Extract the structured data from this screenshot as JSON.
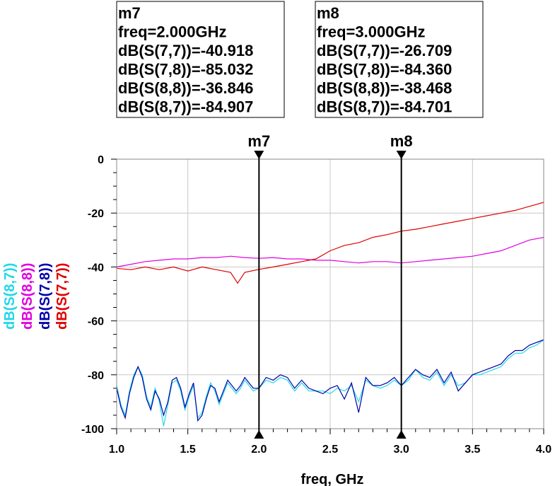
{
  "colors": {
    "s77": "#e00000",
    "s78": "#0000aa",
    "s88": "#e000e0",
    "s87": "#20d8e8",
    "marker": "#000000",
    "grid": "#c8c8c8",
    "axis": "#888888"
  },
  "markers": [
    {
      "name": "m7",
      "freq_label": "freq=2.000GHz",
      "freq": 2.0,
      "lines": [
        "dB(S(7,7))=-40.918",
        "dB(S(7,8))=-85.032",
        "dB(S(8,8))=-36.846",
        "dB(S(8,7))=-84.907"
      ]
    },
    {
      "name": "m8",
      "freq_label": "freq=3.000GHz",
      "freq": 3.0,
      "lines": [
        "dB(S(7,7))=-26.709",
        "dB(S(7,8))=-84.360",
        "dB(S(8,8))=-38.468",
        "dB(S(8,7))=-84.701"
      ]
    }
  ],
  "chart_data": {
    "type": "line",
    "xlabel": "freq, GHz",
    "ylabel": "",
    "xlim": [
      1.0,
      4.0
    ],
    "ylim": [
      -100,
      0
    ],
    "xticks": [
      "1.0",
      "1.5",
      "2.0",
      "2.5",
      "3.0",
      "3.5",
      "4.0"
    ],
    "yticks": [
      "0",
      "-20",
      "-40",
      "-60",
      "-80",
      "-100"
    ],
    "grid": true,
    "legend_placement": "left-vertical",
    "series": [
      {
        "name": "dB(S(8,7))",
        "color": "#20d8e8",
        "key": "s87",
        "x": [
          1.0,
          1.03,
          1.06,
          1.09,
          1.12,
          1.15,
          1.18,
          1.21,
          1.24,
          1.27,
          1.3,
          1.33,
          1.36,
          1.39,
          1.42,
          1.45,
          1.48,
          1.51,
          1.54,
          1.57,
          1.6,
          1.63,
          1.66,
          1.69,
          1.72,
          1.75,
          1.78,
          1.81,
          1.84,
          1.87,
          1.9,
          1.93,
          1.96,
          2.0,
          2.05,
          2.1,
          2.15,
          2.2,
          2.25,
          2.3,
          2.35,
          2.4,
          2.45,
          2.5,
          2.55,
          2.6,
          2.65,
          2.7,
          2.75,
          2.8,
          2.85,
          2.9,
          2.95,
          3.0,
          3.05,
          3.1,
          3.15,
          3.2,
          3.25,
          3.3,
          3.35,
          3.4,
          3.45,
          3.5,
          3.55,
          3.6,
          3.65,
          3.7,
          3.75,
          3.8,
          3.85,
          3.9,
          3.95,
          4.0
        ],
        "y": [
          -84,
          -91,
          -95,
          -86,
          -80,
          -77,
          -80,
          -88,
          -92,
          -85,
          -90,
          -99,
          -91,
          -83,
          -82,
          -86,
          -93,
          -88,
          -84,
          -96,
          -94,
          -88,
          -83,
          -86,
          -91,
          -87,
          -83,
          -85,
          -87,
          -85,
          -82,
          -84,
          -86,
          -85,
          -82,
          -83,
          -81,
          -82,
          -86,
          -83,
          -86,
          -86,
          -86,
          -87,
          -85,
          -86,
          -84,
          -90,
          -82,
          -84,
          -85,
          -84,
          -82,
          -84,
          -82,
          -78,
          -81,
          -82,
          -79,
          -84,
          -80,
          -84,
          -83,
          -80,
          -80,
          -79,
          -78,
          -77,
          -74,
          -72,
          -72,
          -70,
          -69,
          -67
        ]
      },
      {
        "name": "dB(S(8,8))",
        "color": "#e000e0",
        "key": "s88",
        "x": [
          1.0,
          1.1,
          1.2,
          1.3,
          1.4,
          1.5,
          1.6,
          1.7,
          1.8,
          1.9,
          2.0,
          2.1,
          2.2,
          2.3,
          2.4,
          2.5,
          2.6,
          2.7,
          2.8,
          2.9,
          3.0,
          3.1,
          3.2,
          3.3,
          3.4,
          3.5,
          3.6,
          3.7,
          3.8,
          3.9,
          4.0
        ],
        "y": [
          -40,
          -39,
          -38,
          -37.5,
          -37,
          -37,
          -36.5,
          -36.5,
          -36,
          -36.5,
          -36.8,
          -36.5,
          -37,
          -37,
          -37.5,
          -37.5,
          -38,
          -38.5,
          -38,
          -38,
          -38.5,
          -38,
          -37.5,
          -37,
          -36.5,
          -36,
          -35,
          -34,
          -32,
          -30,
          -29
        ]
      },
      {
        "name": "dB(S(7,8))",
        "color": "#0000aa",
        "key": "s78",
        "x": [
          1.0,
          1.03,
          1.06,
          1.09,
          1.12,
          1.15,
          1.18,
          1.21,
          1.24,
          1.27,
          1.3,
          1.33,
          1.36,
          1.39,
          1.42,
          1.45,
          1.48,
          1.51,
          1.54,
          1.57,
          1.6,
          1.63,
          1.66,
          1.69,
          1.72,
          1.75,
          1.78,
          1.81,
          1.84,
          1.87,
          1.9,
          1.93,
          1.96,
          2.0,
          2.05,
          2.1,
          2.15,
          2.2,
          2.25,
          2.3,
          2.35,
          2.4,
          2.45,
          2.5,
          2.55,
          2.6,
          2.65,
          2.7,
          2.75,
          2.8,
          2.85,
          2.9,
          2.95,
          3.0,
          3.05,
          3.1,
          3.15,
          3.2,
          3.25,
          3.3,
          3.35,
          3.4,
          3.45,
          3.5,
          3.55,
          3.6,
          3.65,
          3.7,
          3.75,
          3.8,
          3.85,
          3.9,
          3.95,
          4.0
        ],
        "y": [
          -85,
          -92,
          -96,
          -87,
          -81,
          -77,
          -81,
          -89,
          -93,
          -86,
          -89,
          -95,
          -90,
          -82,
          -81,
          -85,
          -92,
          -87,
          -83,
          -97,
          -95,
          -89,
          -84,
          -85,
          -90,
          -86,
          -82,
          -84,
          -86,
          -84,
          -81,
          -83,
          -85,
          -85,
          -81,
          -82,
          -80,
          -81,
          -85,
          -82,
          -85,
          -86,
          -87,
          -85,
          -84,
          -89,
          -83,
          -94,
          -81,
          -84,
          -84,
          -83,
          -81,
          -84,
          -81,
          -78,
          -80,
          -81,
          -78,
          -83,
          -79,
          -86,
          -83,
          -80,
          -79,
          -78,
          -77,
          -76,
          -73,
          -71,
          -71,
          -69,
          -68,
          -67
        ]
      },
      {
        "name": "dB(S(7,7))",
        "color": "#e00000",
        "key": "s77",
        "x": [
          1.0,
          1.1,
          1.2,
          1.3,
          1.4,
          1.5,
          1.6,
          1.7,
          1.8,
          1.85,
          1.9,
          2.0,
          2.1,
          2.2,
          2.3,
          2.4,
          2.5,
          2.6,
          2.7,
          2.8,
          2.9,
          3.0,
          3.1,
          3.2,
          3.3,
          3.4,
          3.5,
          3.6,
          3.7,
          3.8,
          3.9,
          4.0
        ],
        "y": [
          -40.5,
          -41,
          -40,
          -41,
          -40,
          -41.5,
          -40,
          -41,
          -42,
          -46,
          -42,
          -40.9,
          -40,
          -39,
          -38,
          -37,
          -34,
          -32,
          -31,
          -29,
          -28,
          -26.7,
          -26,
          -25,
          -24,
          -23,
          -22,
          -21,
          -20,
          -19,
          -17.5,
          -16
        ]
      }
    ]
  }
}
